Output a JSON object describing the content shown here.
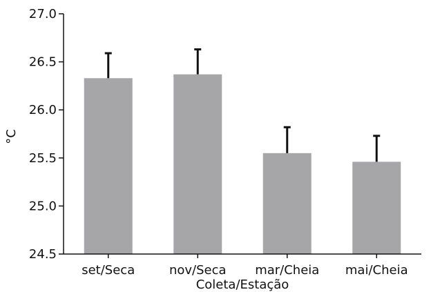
{
  "chart_data": {
    "type": "bar",
    "categories": [
      "set/Seca",
      "nov/Seca",
      "mar/Cheia",
      "mai/Cheia"
    ],
    "values": [
      26.33,
      26.37,
      25.55,
      25.46
    ],
    "error_upper": [
      0.26,
      0.26,
      0.27,
      0.27
    ],
    "xlabel": "Coleta/Estação",
    "ylabel": "°C",
    "ylim": [
      24.5,
      27.0
    ],
    "yticks": [
      "24.5",
      "25.0",
      "25.5",
      "26.0",
      "26.5",
      "27.0"
    ],
    "grid": false,
    "colors": {
      "bar": "#a6a6a9",
      "error_bar": "#111111",
      "axis": "#111111"
    }
  }
}
